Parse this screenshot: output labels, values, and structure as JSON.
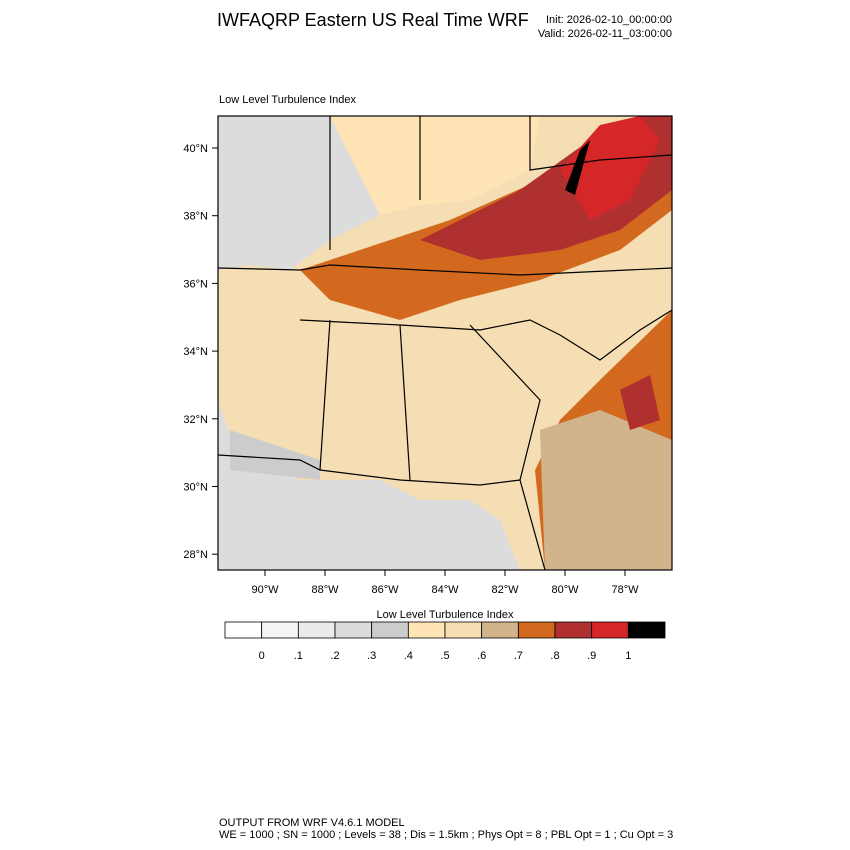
{
  "header": {
    "title": "IWFAQRP Eastern US Real Time WRF",
    "init": "Init: 2026-02-10_00:00:00",
    "valid": "Valid: 2026-02-11_03:00:00"
  },
  "map": {
    "label": "Low Level Turbulence Index",
    "lat_labels": [
      "40°N",
      "38°N",
      "36°N",
      "34°N",
      "32°N",
      "30°N",
      "28°N"
    ],
    "lon_labels": [
      "90°W",
      "88°W",
      "86°W",
      "84°W",
      "82°W",
      "80°W",
      "78°W"
    ]
  },
  "colorbar": {
    "title": "Low Level Turbulence Index",
    "colors": [
      "#ffffff",
      "#f5f5f5",
      "#ebebeb",
      "#dcdcdc",
      "#cccccc",
      "#ffe4b5",
      "#f5deb3",
      "#d2b48c",
      "#d2691e",
      "#b03030",
      "#d62728",
      "#000000"
    ],
    "labels": [
      "0",
      ".1",
      ".2",
      ".3",
      ".4",
      ".5",
      ".6",
      ".7",
      ".8",
      ".9",
      "1"
    ]
  },
  "footer": {
    "line1": "OUTPUT FROM WRF V4.6.1 MODEL",
    "line2": "WE = 1000 ; SN = 1000 ; Levels = 38 ; Dis = 1.5km ; Phys Opt = 8 ; PBL Opt = 1 ; Cu Opt = 3"
  }
}
